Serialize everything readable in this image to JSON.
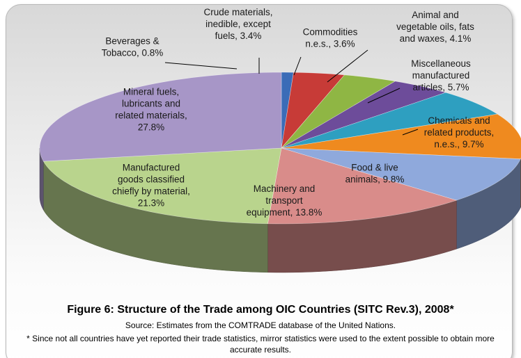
{
  "chart_data": {
    "type": "pie",
    "style": "3d-exploded-none",
    "slices": [
      {
        "label": [
          "Beverages &",
          "Tobacco, 0.8%"
        ],
        "value": 0.8,
        "color": "#3b6cb7"
      },
      {
        "label": [
          "Crude materials,",
          "inedible, except",
          "fuels, 3.4%"
        ],
        "value": 3.4,
        "color": "#c73b37"
      },
      {
        "label": [
          "Commodities",
          "n.e.s., 3.6%"
        ],
        "value": 3.6,
        "color": "#8fb644"
      },
      {
        "label": [
          "Animal and",
          "vegetable oils, fats",
          "and waxes, 4.1%"
        ],
        "value": 4.1,
        "color": "#6d4c9a"
      },
      {
        "label": [
          "Miscellaneous",
          "manufactured",
          "articles, 5.7%"
        ],
        "value": 5.7,
        "color": "#2e9fc0"
      },
      {
        "label": [
          "Chemicals and",
          "related products,",
          "n.e.s., 9.7%"
        ],
        "value": 9.7,
        "color": "#ef8a1f"
      },
      {
        "label": [
          "Food & live",
          "animals, 9.8%"
        ],
        "value": 9.8,
        "color": "#8fa9dc"
      },
      {
        "label": [
          "Machinery and",
          "transport",
          "equipment, 13.8%"
        ],
        "value": 13.8,
        "color": "#d98c8a"
      },
      {
        "label": [
          "Manufactured",
          "goods classified",
          "chiefly by material,",
          "21.3%"
        ],
        "value": 21.3,
        "color": "#b9d48d"
      },
      {
        "label": [
          "Mineral fuels,",
          "lubricants and",
          "related materials,",
          "27.8%"
        ],
        "value": 27.8,
        "color": "#a796c7"
      }
    ]
  },
  "caption": {
    "title": "Figure 6: Structure of the Trade among OIC Countries (SITC Rev.3), 2008*",
    "source": "Source: Estimates from the COMTRADE database of the United Nations.",
    "note": "* Since not all countries have yet reported their trade statistics, mirror statistics were used to the extent possible to obtain more accurate results."
  }
}
